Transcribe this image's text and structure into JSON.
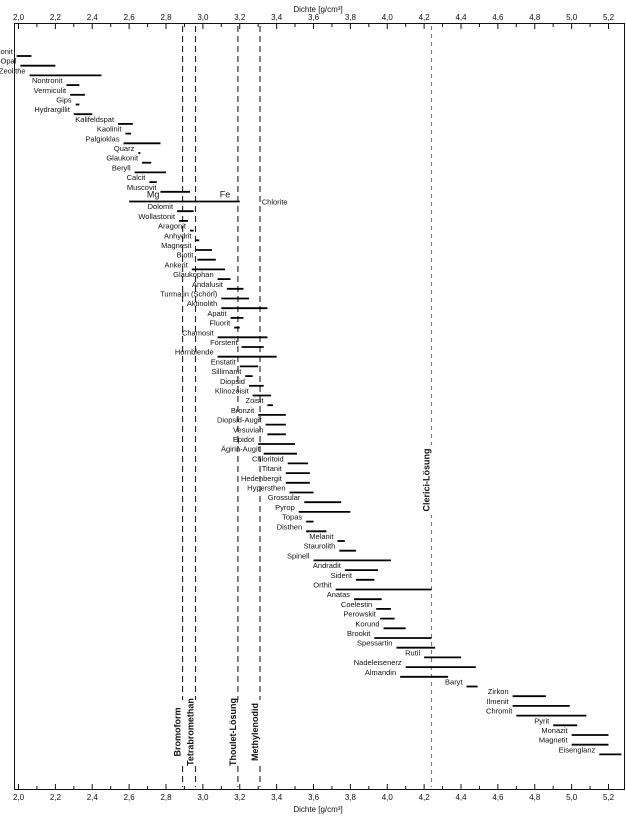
{
  "chart_data": {
    "type": "range-bar",
    "xlabel": "Dichte [g/cm³]",
    "xlim": [
      1.97,
      5.27
    ],
    "xticks": [
      "2,0",
      "2,2",
      "2,4",
      "2,6",
      "2,8",
      "3,0",
      "3,2",
      "3,4",
      "3,6",
      "3,8",
      "4,0",
      "4,2",
      "4,4",
      "4,6",
      "4,8",
      "5,0",
      "5,2"
    ],
    "xtick_values": [
      2.0,
      2.2,
      2.4,
      2.6,
      2.8,
      3.0,
      3.2,
      3.4,
      3.6,
      3.8,
      4.0,
      4.2,
      4.4,
      4.6,
      4.8,
      5.0,
      5.2
    ],
    "reference_lines": [
      {
        "label": "Bromoform",
        "x": 2.89
      },
      {
        "label": "Tetrabromethan",
        "x": 2.96
      },
      {
        "label": "Thoulet-Lösung",
        "x": 3.19
      },
      {
        "label": "Methylenodid",
        "x": 3.31
      },
      {
        "label": "Clerici-Lösung",
        "x": 4.24
      }
    ],
    "minerals": [
      {
        "name": "Montmorillonit",
        "min": 1.99,
        "max": 2.07
      },
      {
        "name": "Opal",
        "min": 2.01,
        "max": 2.2
      },
      {
        "name": "Zeolithe",
        "min": 2.06,
        "max": 2.45
      },
      {
        "name": "Nontronit",
        "min": 2.26,
        "max": 2.33
      },
      {
        "name": "Vermiculit",
        "min": 2.28,
        "max": 2.36
      },
      {
        "name": "Gips",
        "min": 2.31,
        "max": 2.33
      },
      {
        "name": "Hydrargillit",
        "min": 2.3,
        "max": 2.4
      },
      {
        "name": "Kalifeldspat",
        "min": 2.54,
        "max": 2.62
      },
      {
        "name": "Kaolinit",
        "min": 2.58,
        "max": 2.61
      },
      {
        "name": "Palgioklas",
        "min": 2.57,
        "max": 2.77
      },
      {
        "name": "Quarz",
        "min": 2.65,
        "max": 2.66
      },
      {
        "name": "Glaukonit",
        "min": 2.67,
        "max": 2.72
      },
      {
        "name": "Beryll",
        "min": 2.63,
        "max": 2.8
      },
      {
        "name": "Calcit",
        "min": 2.71,
        "max": 2.75
      },
      {
        "name": "Muscovit",
        "min": 2.77,
        "max": 2.93
      },
      {
        "name": "Chlorite",
        "min": 2.6,
        "max": 3.2,
        "left_label": "Mg",
        "right_label": "Fe"
      },
      {
        "name": "Dolomit",
        "min": 2.86,
        "max": 2.95
      },
      {
        "name": "Wollastonit",
        "min": 2.87,
        "max": 2.92
      },
      {
        "name": "Aragonit",
        "min": 2.93,
        "max": 2.95
      },
      {
        "name": "Anhydrit",
        "min": 2.96,
        "max": 2.98
      },
      {
        "name": "Magnesit",
        "min": 2.96,
        "max": 3.05
      },
      {
        "name": "Biotit",
        "min": 2.97,
        "max": 3.07
      },
      {
        "name": "Ankerit",
        "min": 2.94,
        "max": 3.12
      },
      {
        "name": "Glaukophan",
        "min": 3.08,
        "max": 3.15
      },
      {
        "name": "Andalusit",
        "min": 3.13,
        "max": 3.22
      },
      {
        "name": "Turmalin (Schörl)",
        "min": 3.1,
        "max": 3.25
      },
      {
        "name": "Aktinolith",
        "min": 3.1,
        "max": 3.35
      },
      {
        "name": "Apatit",
        "min": 3.15,
        "max": 3.22
      },
      {
        "name": "Fluorit",
        "min": 3.17,
        "max": 3.2
      },
      {
        "name": "Chamosit",
        "min": 3.08,
        "max": 3.35
      },
      {
        "name": "Forsterit",
        "min": 3.21,
        "max": 3.33
      },
      {
        "name": "Hornblende",
        "min": 3.08,
        "max": 3.4
      },
      {
        "name": "Enstatit",
        "min": 3.2,
        "max": 3.3
      },
      {
        "name": "Sillimanit",
        "min": 3.23,
        "max": 3.27
      },
      {
        "name": "Diopsid",
        "min": 3.25,
        "max": 3.33
      },
      {
        "name": "Klinozoisit",
        "min": 3.27,
        "max": 3.37
      },
      {
        "name": "Zoisit",
        "min": 3.35,
        "max": 3.38
      },
      {
        "name": "Bronzit",
        "min": 3.3,
        "max": 3.45
      },
      {
        "name": "Diopsid-Augit",
        "min": 3.34,
        "max": 3.45
      },
      {
        "name": "Vesuvian",
        "min": 3.35,
        "max": 3.45
      },
      {
        "name": "Epidot",
        "min": 3.3,
        "max": 3.5
      },
      {
        "name": "Ägirin-Augit",
        "min": 3.33,
        "max": 3.51
      },
      {
        "name": "Chloritoid",
        "min": 3.46,
        "max": 3.57
      },
      {
        "name": "Titanit",
        "min": 3.45,
        "max": 3.58
      },
      {
        "name": "Hedenbergit",
        "min": 3.45,
        "max": 3.58
      },
      {
        "name": "Hypersthen",
        "min": 3.47,
        "max": 3.6
      },
      {
        "name": "Grossular",
        "min": 3.55,
        "max": 3.75
      },
      {
        "name": "Pyrop",
        "min": 3.52,
        "max": 3.8
      },
      {
        "name": "Topas",
        "min": 3.56,
        "max": 3.6
      },
      {
        "name": "Disthen",
        "min": 3.56,
        "max": 3.67
      },
      {
        "name": "Melanit",
        "min": 3.73,
        "max": 3.77
      },
      {
        "name": "Staurolith",
        "min": 3.74,
        "max": 3.83
      },
      {
        "name": "Spinell",
        "min": 3.6,
        "max": 4.02
      },
      {
        "name": "Andradit",
        "min": 3.77,
        "max": 3.95
      },
      {
        "name": "Siderit",
        "min": 3.83,
        "max": 3.93
      },
      {
        "name": "Orthit",
        "min": 3.72,
        "max": 4.24
      },
      {
        "name": "Anatas",
        "min": 3.82,
        "max": 3.97
      },
      {
        "name": "Coelestin",
        "min": 3.94,
        "max": 4.02
      },
      {
        "name": "Perowskit",
        "min": 3.96,
        "max": 4.04
      },
      {
        "name": "Korund",
        "min": 3.98,
        "max": 4.1
      },
      {
        "name": "Brookit",
        "min": 3.93,
        "max": 4.24
      },
      {
        "name": "Spessartin",
        "min": 4.05,
        "max": 4.26
      },
      {
        "name": "Rutil",
        "min": 4.2,
        "max": 4.4
      },
      {
        "name": "Nadeleisenerz",
        "min": 4.1,
        "max": 4.48
      },
      {
        "name": "Almandin",
        "min": 4.07,
        "max": 4.33
      },
      {
        "name": "Baryt",
        "min": 4.43,
        "max": 4.49
      },
      {
        "name": "Zirkon",
        "min": 4.68,
        "max": 4.86
      },
      {
        "name": "Ilmenit",
        "min": 4.68,
        "max": 4.99
      },
      {
        "name": "Chromit",
        "min": 4.7,
        "max": 5.08
      },
      {
        "name": "Pyrit",
        "min": 4.9,
        "max": 5.03
      },
      {
        "name": "Monazit",
        "min": 5.0,
        "max": 5.2
      },
      {
        "name": "Magnetit",
        "min": 5.0,
        "max": 5.2
      },
      {
        "name": "Eisenglanz",
        "min": 5.15,
        "max": 5.27
      }
    ]
  }
}
